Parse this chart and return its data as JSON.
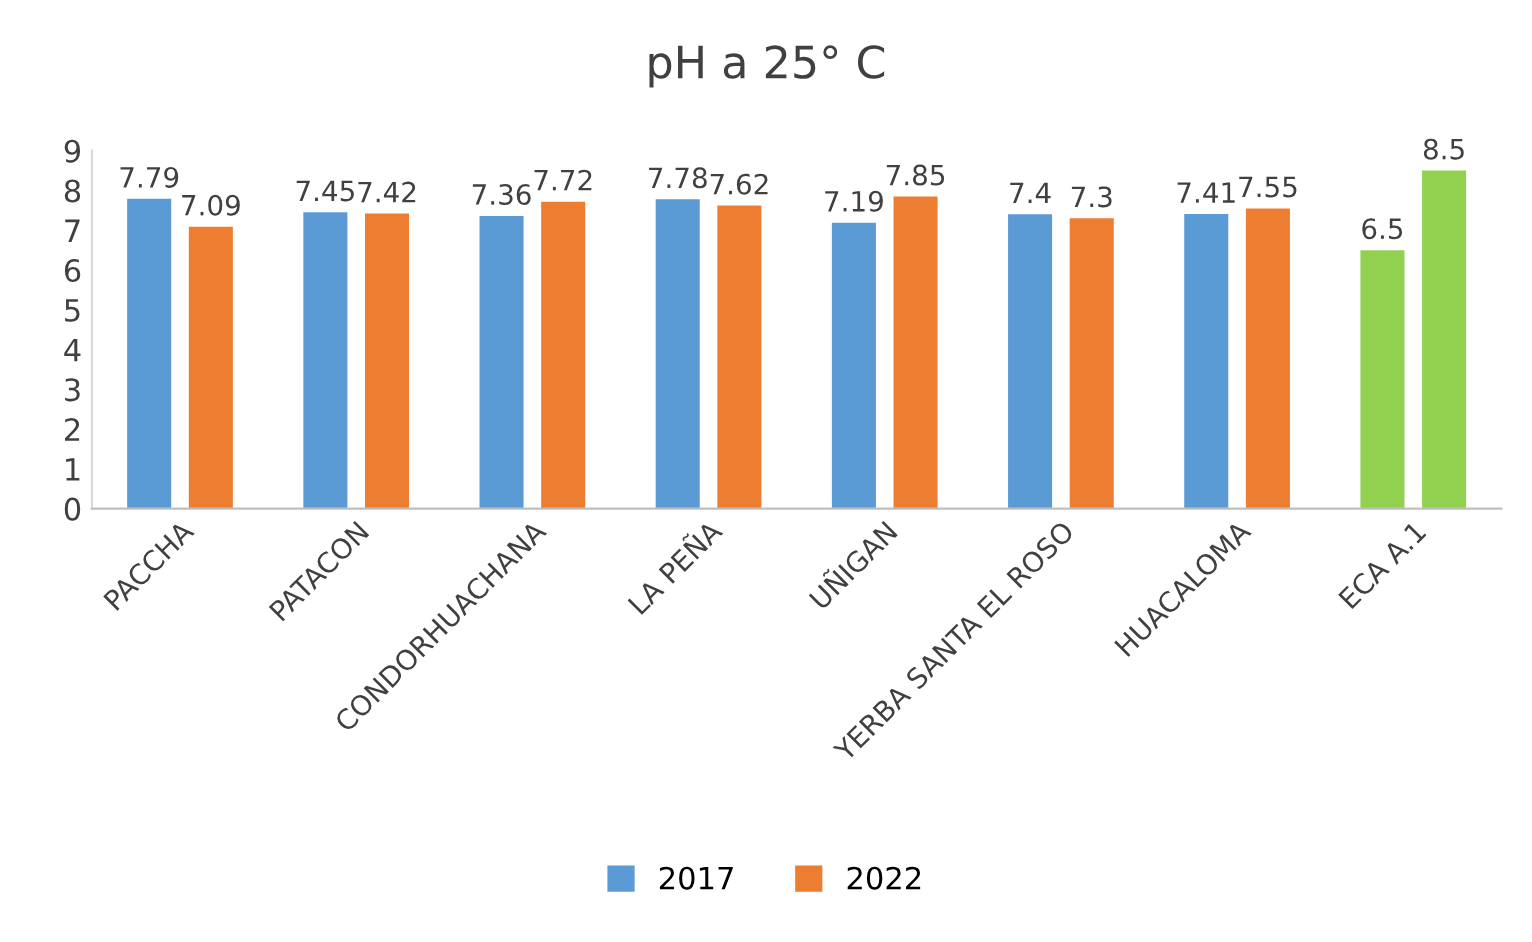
{
  "chart_data": {
    "type": "bar",
    "title": "pH a 25° C",
    "categories": [
      "PACCHA",
      "PATACON",
      "CONDORHUACHANA",
      "LA PEÑA",
      "UÑIGAN",
      "YERBA SANTA EL ROSO",
      "HUACALOMA",
      "ECA A.1"
    ],
    "series": [
      {
        "name": "2017",
        "color": "#5b9bd5",
        "colors": [
          "#5b9bd5",
          "#5b9bd5",
          "#5b9bd5",
          "#5b9bd5",
          "#5b9bd5",
          "#5b9bd5",
          "#5b9bd5",
          "#92d050"
        ],
        "values": [
          7.79,
          7.45,
          7.36,
          7.78,
          7.19,
          7.4,
          7.41,
          6.5
        ]
      },
      {
        "name": "2022",
        "color": "#ed7d31",
        "colors": [
          "#ed7d31",
          "#ed7d31",
          "#ed7d31",
          "#ed7d31",
          "#ed7d31",
          "#ed7d31",
          "#ed7d31",
          "#92d050"
        ],
        "values": [
          7.09,
          7.42,
          7.72,
          7.62,
          7.85,
          7.3,
          7.55,
          8.5
        ]
      }
    ],
    "ylim": [
      0,
      9
    ],
    "yticks": [
      0,
      1,
      2,
      3,
      4,
      5,
      6,
      7,
      8,
      9
    ],
    "grid": false,
    "legend": "bottom",
    "data_labels": true
  }
}
